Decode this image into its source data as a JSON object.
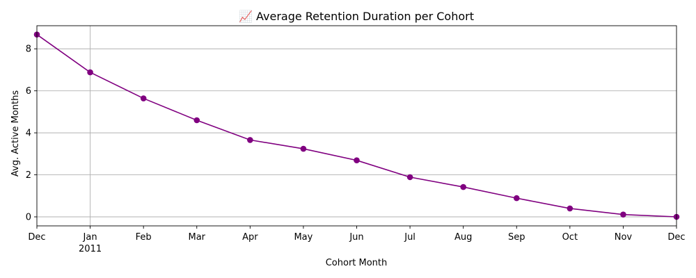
{
  "chart_data": {
    "type": "line",
    "title": "📈 Average Retention Duration per Cohort",
    "xlabel": "Cohort Month",
    "ylabel": "Avg. Active Months",
    "x": [
      "2010-12",
      "2011-01",
      "2011-02",
      "2011-03",
      "2011-04",
      "2011-05",
      "2011-06",
      "2011-07",
      "2011-08",
      "2011-09",
      "2011-10",
      "2011-11",
      "2011-12"
    ],
    "x_tick_labels": [
      "Dec",
      "Jan",
      "Feb",
      "Mar",
      "Apr",
      "May",
      "Jun",
      "Jul",
      "Aug",
      "Sep",
      "Oct",
      "Nov",
      "Dec"
    ],
    "x_year_label": "2011",
    "series": [
      {
        "values": [
          8.68,
          6.88,
          5.64,
          4.6,
          3.66,
          3.24,
          2.69,
          1.89,
          1.42,
          0.89,
          0.4,
          0.11,
          0.0
        ]
      }
    ],
    "ylim": [
      -0.43,
      9.1
    ],
    "y_ticks": [
      0,
      2,
      4,
      6,
      8
    ],
    "grid": true,
    "colors": {
      "line": "#800080",
      "grid": "#b0b0b0",
      "axis": "#000000"
    }
  }
}
